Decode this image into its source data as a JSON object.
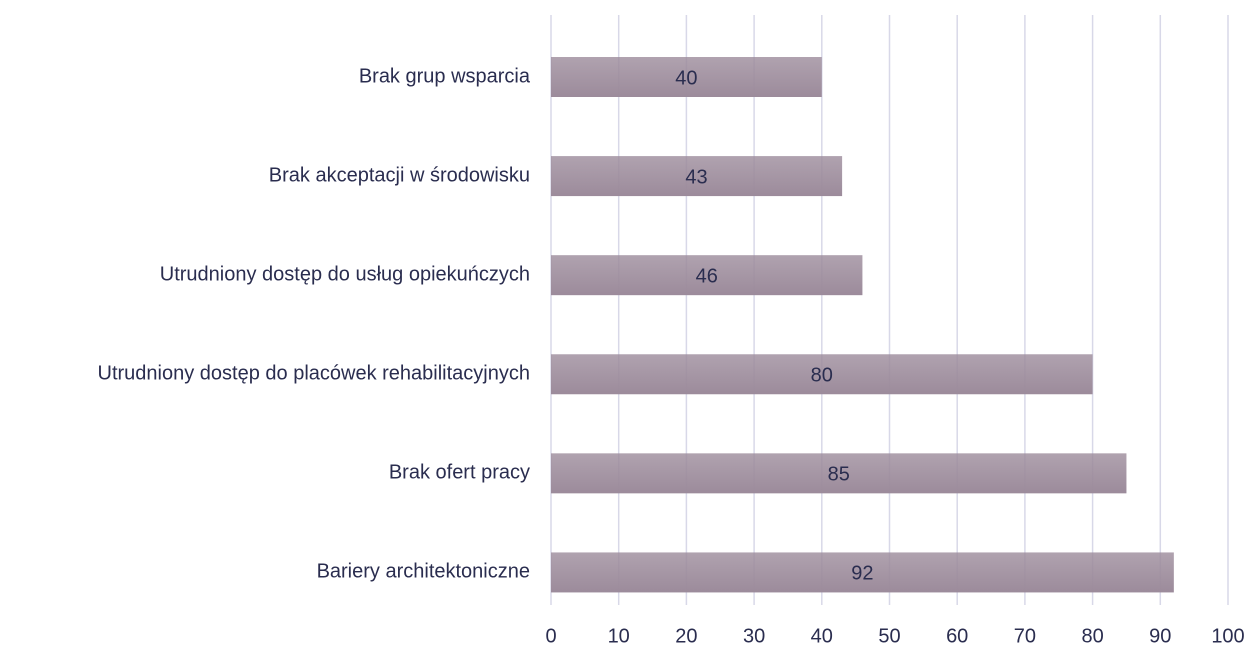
{
  "chart_data": {
    "type": "barh",
    "categories": [
      "Brak grup wsparcia",
      "Brak akceptacji w środowisku",
      "Utrudniony dostęp do usług opiekuńczych",
      "Utrudniony dostęp do placówek rehabilitacyjnych",
      "Brak ofert pracy",
      "Bariery architektoniczne"
    ],
    "values": [
      40,
      43,
      46,
      80,
      85,
      92
    ],
    "color": "#9c8b9b",
    "xlim": [
      0,
      100
    ],
    "xticks": [
      0,
      10,
      20,
      30,
      40,
      50,
      60,
      70,
      80,
      90,
      100
    ],
    "grid": true
  }
}
